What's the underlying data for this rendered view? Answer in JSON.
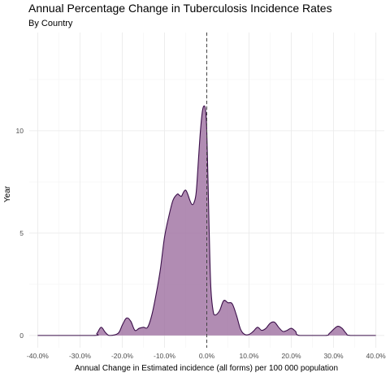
{
  "chart_data": {
    "type": "area",
    "title": "Annual Percentage Change in Tuberculosis Incidence Rates",
    "subtitle": "By Country",
    "xlabel": "Annual Change in Estimated incidence (all forms) per 100 000 population",
    "ylabel": "Year",
    "xlim": [
      -42,
      42
    ],
    "ylim": [
      -0.6,
      14.8
    ],
    "x_ticks": [
      -40,
      -30,
      -20,
      -10,
      0,
      10,
      20,
      30,
      40
    ],
    "x_tick_labels": [
      "-40.0%",
      "-30.0%",
      "-20.0%",
      "-10.0%",
      "0.0%",
      "10.0%",
      "20.0%",
      "30.0%",
      "40.0%"
    ],
    "y_ticks": [
      0,
      5,
      10
    ],
    "y_tick_labels": [
      "0",
      "5",
      "10"
    ],
    "reference_line": {
      "x": 0,
      "style": "dashed"
    },
    "grid": true,
    "fill_color": "#9b6c9e",
    "line_color": "#3b0f4a",
    "series": [
      {
        "x": [
          -40,
          -27,
          -26,
          -25,
          -24,
          -23,
          -21,
          -20,
          -19,
          -18,
          -17,
          -16,
          -15,
          -14,
          -13,
          -12,
          -11,
          -10,
          -9,
          -8,
          -7,
          -6.5,
          -6,
          -5.5,
          -5,
          -4.5,
          -4,
          -3.5,
          -3,
          -2.5,
          -2,
          -1.5,
          -1,
          -0.5,
          -0.2,
          0,
          0.3,
          0.7,
          1,
          1.5,
          2,
          3,
          4,
          5,
          6,
          7,
          8,
          9,
          10,
          11,
          12,
          13,
          14,
          15,
          16,
          17,
          18,
          19,
          20,
          21,
          22,
          28,
          29,
          30,
          31,
          32,
          33,
          34,
          40
        ],
        "y": [
          0,
          0,
          0.1,
          0.4,
          0.15,
          0,
          0.1,
          0.5,
          0.85,
          0.7,
          0.25,
          0.35,
          0.4,
          0.4,
          1.0,
          2.0,
          3.2,
          4.8,
          5.8,
          6.6,
          6.9,
          6.85,
          6.8,
          7.0,
          7.1,
          6.9,
          6.6,
          6.4,
          6.5,
          7.0,
          8.5,
          10.0,
          11.0,
          11.2,
          10.8,
          10.0,
          7.5,
          4.0,
          2.2,
          1.2,
          1.0,
          1.2,
          1.7,
          1.6,
          1.55,
          1.0,
          0.3,
          0.05,
          0.05,
          0.2,
          0.4,
          0.25,
          0.35,
          0.6,
          0.65,
          0.4,
          0.2,
          0.25,
          0.35,
          0.2,
          0,
          0,
          0.1,
          0.3,
          0.45,
          0.35,
          0.1,
          0,
          0
        ]
      }
    ]
  }
}
